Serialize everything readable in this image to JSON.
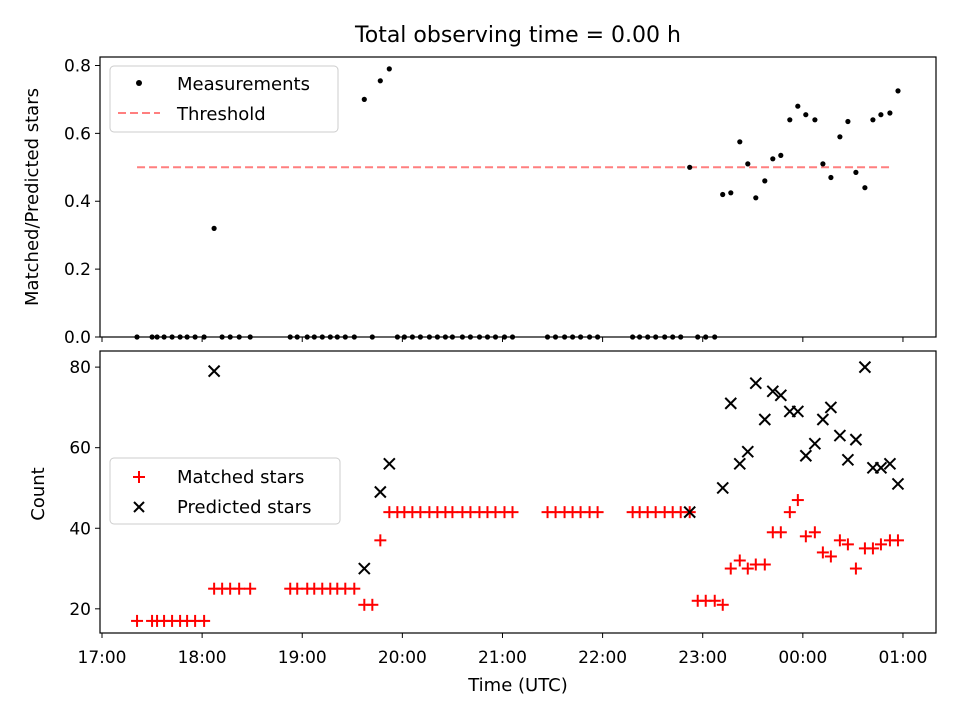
{
  "chart_data": [
    {
      "type": "scatter",
      "title": "Total observing time = 0.00 h",
      "xlabel": "",
      "ylabel": "Matched/Predicted stars",
      "ylim": [
        0,
        0.825
      ],
      "xlim_hours": [
        16.98,
        25.33
      ],
      "yticks": [
        0.0,
        0.2,
        0.4,
        0.6,
        0.8
      ],
      "ytick_labels": [
        "0.0",
        "0.2",
        "0.4",
        "0.6",
        "0.8"
      ],
      "grid": false,
      "legend_position": "upper-left",
      "legend": [
        {
          "label": "Measurements",
          "marker": "dot",
          "color": "#000000"
        },
        {
          "label": "Threshold",
          "marker": "dashed-line",
          "color": "#ff7f7f"
        }
      ],
      "threshold": {
        "value": 0.5,
        "x_start": 17.35,
        "x_end": 24.9
      },
      "series": [
        {
          "name": "Measurements",
          "color": "#000000",
          "points": [
            [
              17.35,
              0
            ],
            [
              17.5,
              0
            ],
            [
              17.55,
              0
            ],
            [
              17.62,
              0
            ],
            [
              17.7,
              0
            ],
            [
              17.78,
              0
            ],
            [
              17.85,
              0
            ],
            [
              17.93,
              0
            ],
            [
              18.02,
              0
            ],
            [
              18.12,
              0.32
            ],
            [
              18.2,
              0
            ],
            [
              18.28,
              0
            ],
            [
              18.37,
              0
            ],
            [
              18.48,
              0
            ],
            [
              18.88,
              0
            ],
            [
              18.95,
              0
            ],
            [
              19.05,
              0
            ],
            [
              19.12,
              0
            ],
            [
              19.2,
              0
            ],
            [
              19.28,
              0
            ],
            [
              19.35,
              0
            ],
            [
              19.43,
              0
            ],
            [
              19.52,
              0
            ],
            [
              19.62,
              0.7
            ],
            [
              19.7,
              0
            ],
            [
              19.78,
              0.755
            ],
            [
              19.87,
              0.79
            ],
            [
              19.95,
              0
            ],
            [
              20.02,
              0
            ],
            [
              20.1,
              0
            ],
            [
              20.18,
              0
            ],
            [
              20.27,
              0
            ],
            [
              20.35,
              0
            ],
            [
              20.43,
              0
            ],
            [
              20.5,
              0
            ],
            [
              20.6,
              0
            ],
            [
              20.68,
              0
            ],
            [
              20.77,
              0
            ],
            [
              20.85,
              0
            ],
            [
              20.93,
              0
            ],
            [
              21.02,
              0
            ],
            [
              21.1,
              0
            ],
            [
              21.45,
              0
            ],
            [
              21.53,
              0
            ],
            [
              21.62,
              0
            ],
            [
              21.7,
              0
            ],
            [
              21.78,
              0
            ],
            [
              21.87,
              0
            ],
            [
              21.95,
              0
            ],
            [
              22.3,
              0
            ],
            [
              22.37,
              0
            ],
            [
              22.45,
              0
            ],
            [
              22.53,
              0
            ],
            [
              22.62,
              0
            ],
            [
              22.7,
              0
            ],
            [
              22.78,
              0
            ],
            [
              22.87,
              0.5
            ],
            [
              22.95,
              0
            ],
            [
              23.03,
              0
            ],
            [
              23.12,
              0
            ],
            [
              23.2,
              0.42
            ],
            [
              23.28,
              0.425
            ],
            [
              23.37,
              0.575
            ],
            [
              23.45,
              0.51
            ],
            [
              23.53,
              0.41
            ],
            [
              23.62,
              0.46
            ],
            [
              23.7,
              0.525
            ],
            [
              23.78,
              0.535
            ],
            [
              23.87,
              0.64
            ],
            [
              23.95,
              0.68
            ],
            [
              24.03,
              0.655
            ],
            [
              24.12,
              0.64
            ],
            [
              24.2,
              0.51
            ],
            [
              24.28,
              0.47
            ],
            [
              24.37,
              0.59
            ],
            [
              24.45,
              0.635
            ],
            [
              24.53,
              0.485
            ],
            [
              24.62,
              0.44
            ],
            [
              24.7,
              0.64
            ],
            [
              24.78,
              0.655
            ],
            [
              24.87,
              0.66
            ],
            [
              24.95,
              0.725
            ]
          ]
        }
      ]
    },
    {
      "type": "scatter",
      "title": "",
      "xlabel": "Time (UTC)",
      "ylabel": "Count",
      "ylim": [
        14,
        84
      ],
      "xlim_hours": [
        16.98,
        25.33
      ],
      "yticks": [
        20,
        40,
        60,
        80
      ],
      "ytick_labels": [
        "20",
        "40",
        "60",
        "80"
      ],
      "xticks_hours": [
        17,
        18,
        19,
        20,
        21,
        22,
        23,
        24,
        25
      ],
      "xtick_labels": [
        "17:00",
        "18:00",
        "19:00",
        "20:00",
        "21:00",
        "22:00",
        "23:00",
        "00:00",
        "01:00"
      ],
      "grid": false,
      "legend_position": "center-left",
      "legend": [
        {
          "label": "Matched stars",
          "marker": "plus",
          "color": "#ff0000"
        },
        {
          "label": "Predicted stars",
          "marker": "x",
          "color": "#000000"
        }
      ],
      "series": [
        {
          "name": "Matched stars",
          "marker": "plus",
          "color": "#ff0000",
          "points": [
            [
              17.35,
              17
            ],
            [
              17.5,
              17
            ],
            [
              17.55,
              17
            ],
            [
              17.62,
              17
            ],
            [
              17.7,
              17
            ],
            [
              17.78,
              17
            ],
            [
              17.85,
              17
            ],
            [
              17.93,
              17
            ],
            [
              18.02,
              17
            ],
            [
              18.12,
              25
            ],
            [
              18.2,
              25
            ],
            [
              18.28,
              25
            ],
            [
              18.37,
              25
            ],
            [
              18.48,
              25
            ],
            [
              18.88,
              25
            ],
            [
              18.95,
              25
            ],
            [
              19.05,
              25
            ],
            [
              19.12,
              25
            ],
            [
              19.2,
              25
            ],
            [
              19.28,
              25
            ],
            [
              19.35,
              25
            ],
            [
              19.43,
              25
            ],
            [
              19.52,
              25
            ],
            [
              19.62,
              21
            ],
            [
              19.7,
              21
            ],
            [
              19.78,
              37
            ],
            [
              19.87,
              44
            ],
            [
              19.95,
              44
            ],
            [
              20.02,
              44
            ],
            [
              20.1,
              44
            ],
            [
              20.18,
              44
            ],
            [
              20.27,
              44
            ],
            [
              20.35,
              44
            ],
            [
              20.43,
              44
            ],
            [
              20.5,
              44
            ],
            [
              20.6,
              44
            ],
            [
              20.68,
              44
            ],
            [
              20.77,
              44
            ],
            [
              20.85,
              44
            ],
            [
              20.93,
              44
            ],
            [
              21.02,
              44
            ],
            [
              21.1,
              44
            ],
            [
              21.45,
              44
            ],
            [
              21.53,
              44
            ],
            [
              21.62,
              44
            ],
            [
              21.7,
              44
            ],
            [
              21.78,
              44
            ],
            [
              21.87,
              44
            ],
            [
              21.95,
              44
            ],
            [
              22.3,
              44
            ],
            [
              22.37,
              44
            ],
            [
              22.45,
              44
            ],
            [
              22.53,
              44
            ],
            [
              22.62,
              44
            ],
            [
              22.7,
              44
            ],
            [
              22.78,
              44
            ],
            [
              22.87,
              44
            ],
            [
              22.95,
              22
            ],
            [
              23.03,
              22
            ],
            [
              23.12,
              22
            ],
            [
              23.2,
              21
            ],
            [
              23.28,
              30
            ],
            [
              23.37,
              32
            ],
            [
              23.45,
              30
            ],
            [
              23.53,
              31
            ],
            [
              23.62,
              31
            ],
            [
              23.7,
              39
            ],
            [
              23.78,
              39
            ],
            [
              23.87,
              44
            ],
            [
              23.95,
              47
            ],
            [
              24.03,
              38
            ],
            [
              24.12,
              39
            ],
            [
              24.2,
              34
            ],
            [
              24.28,
              33
            ],
            [
              24.37,
              37
            ],
            [
              24.45,
              36
            ],
            [
              24.53,
              30
            ],
            [
              24.62,
              35
            ],
            [
              24.7,
              35
            ],
            [
              24.78,
              36
            ],
            [
              24.87,
              37
            ],
            [
              24.95,
              37
            ]
          ]
        },
        {
          "name": "Predicted stars",
          "marker": "x",
          "color": "#000000",
          "points": [
            [
              18.12,
              79
            ],
            [
              19.62,
              30
            ],
            [
              19.78,
              49
            ],
            [
              19.87,
              56
            ],
            [
              22.87,
              44
            ],
            [
              23.2,
              50
            ],
            [
              23.28,
              71
            ],
            [
              23.37,
              56
            ],
            [
              23.45,
              59
            ],
            [
              23.53,
              76
            ],
            [
              23.62,
              67
            ],
            [
              23.7,
              74
            ],
            [
              23.78,
              73
            ],
            [
              23.87,
              69
            ],
            [
              23.95,
              69
            ],
            [
              24.03,
              58
            ],
            [
              24.12,
              61
            ],
            [
              24.2,
              67
            ],
            [
              24.28,
              70
            ],
            [
              24.37,
              63
            ],
            [
              24.45,
              57
            ],
            [
              24.53,
              62
            ],
            [
              24.62,
              80
            ],
            [
              24.7,
              55
            ],
            [
              24.78,
              55
            ],
            [
              24.87,
              56
            ],
            [
              24.95,
              51
            ]
          ]
        }
      ]
    }
  ]
}
